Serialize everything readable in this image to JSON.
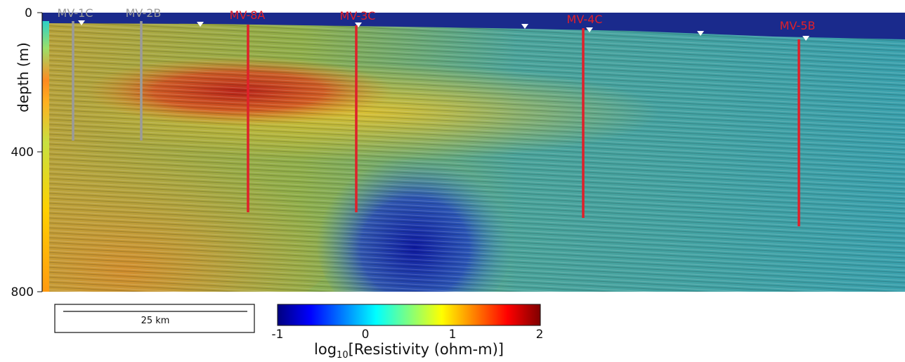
{
  "axis": {
    "ylabel": "depth (m)",
    "yticks": [
      "0",
      "400",
      "800"
    ]
  },
  "wells": [
    {
      "label": "MV-1C",
      "color": "#9a9a9a"
    },
    {
      "label": "MV-2B",
      "color": "#9a9a9a"
    },
    {
      "label": "MV-8A",
      "color": "#e0202a"
    },
    {
      "label": "MV-3C",
      "color": "#e0202a"
    },
    {
      "label": "MV-4C",
      "color": "#e0202a"
    },
    {
      "label": "MV-5B",
      "color": "#e0202a"
    }
  ],
  "scale_bar": {
    "label": "25 km"
  },
  "colorbar": {
    "ticks": [
      "-1",
      "0",
      "1",
      "2"
    ],
    "title_prefix": "log",
    "title_sub": "10",
    "title_suffix": "[Resistivity (ohm-m)]",
    "colormap": [
      "#00007f",
      "#0000ff",
      "#007fff",
      "#00ffff",
      "#7fff7f",
      "#ffff00",
      "#ff7f00",
      "#ff0000",
      "#7f0000"
    ]
  },
  "colors": {
    "water": "#1a2a8c",
    "background_section": "#3fa0a8",
    "high_resistivity": "#c02a20",
    "low_resistivity": "#1e2aa8"
  }
}
